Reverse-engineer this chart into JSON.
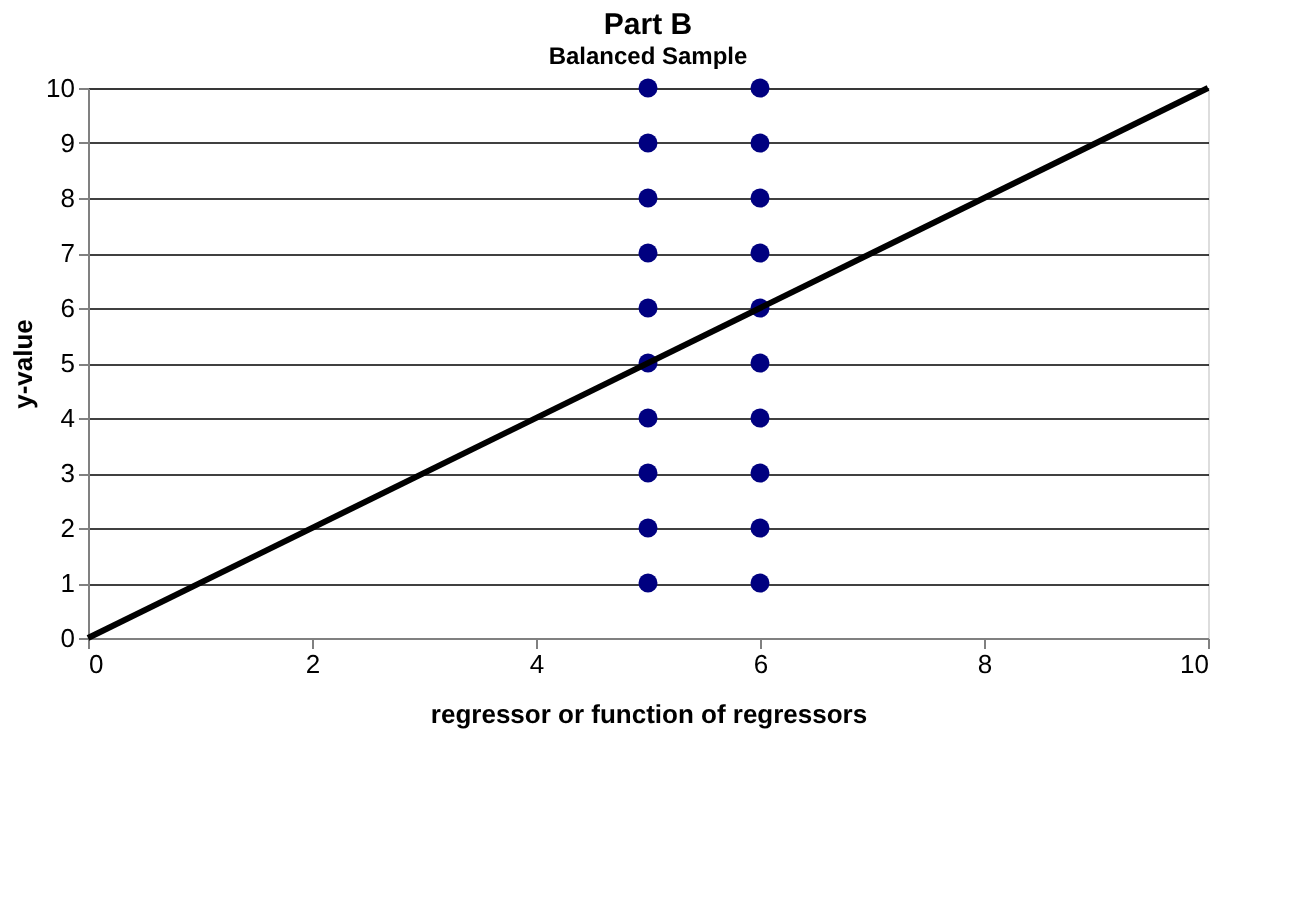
{
  "chart_data": {
    "type": "scatter",
    "title": "Part B",
    "subtitle": "Balanced Sample",
    "xlabel": "regressor or function of regressors",
    "ylabel": "y-value",
    "xlim": [
      0,
      10
    ],
    "xticks": [
      0,
      2,
      4,
      6,
      8,
      10
    ],
    "ylim": [
      0,
      10
    ],
    "yticks": [
      0,
      1,
      2,
      3,
      4,
      5,
      6,
      7,
      8,
      9,
      10
    ],
    "grid": "y",
    "series": [
      {
        "color": "#000080",
        "marker": "circle",
        "x": [
          5,
          5,
          5,
          5,
          5,
          5,
          5,
          5,
          5,
          5,
          6,
          6,
          6,
          6,
          6,
          6,
          6,
          6,
          6,
          6
        ],
        "values": [
          1,
          2,
          3,
          4,
          5,
          6,
          7,
          8,
          9,
          10,
          1,
          2,
          3,
          4,
          5,
          6,
          7,
          8,
          9,
          10
        ]
      },
      {
        "type": "line",
        "color": "#000000",
        "marker": "none",
        "line_style": "solid",
        "x": [
          0,
          10
        ],
        "values": [
          0,
          10
        ]
      }
    ]
  }
}
